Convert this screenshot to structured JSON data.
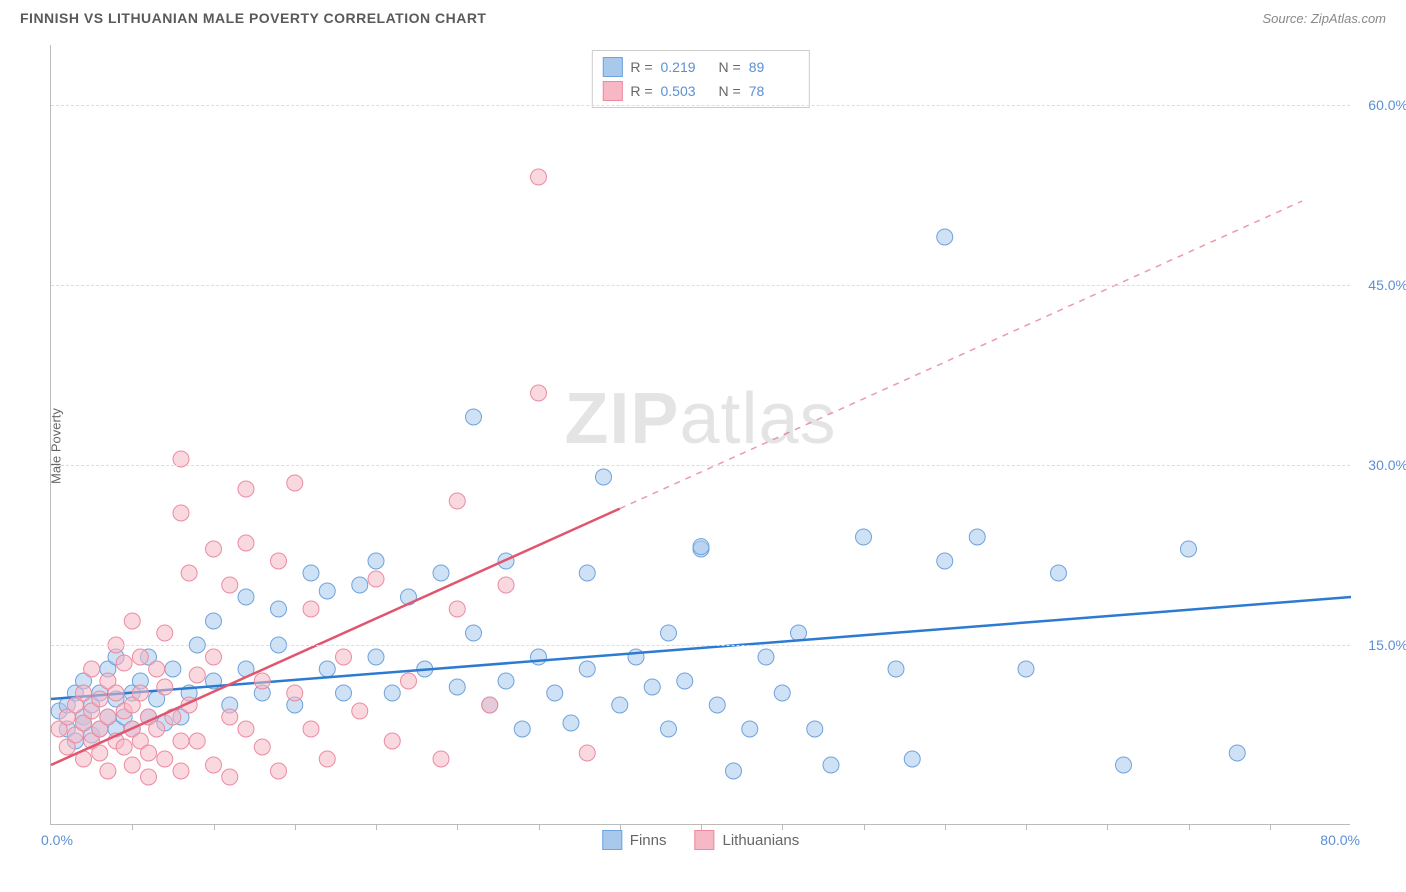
{
  "title": "FINNISH VS LITHUANIAN MALE POVERTY CORRELATION CHART",
  "source_label": "Source: ZipAtlas.com",
  "y_axis_label": "Male Poverty",
  "watermark": {
    "part1": "ZIP",
    "part2": "atlas"
  },
  "chart": {
    "type": "scatter",
    "xlim": [
      0,
      80
    ],
    "ylim": [
      0,
      65
    ],
    "x_min_label": "0.0%",
    "x_max_label": "80.0%",
    "y_ticks": [
      {
        "v": 15,
        "label": "15.0%"
      },
      {
        "v": 30,
        "label": "30.0%"
      },
      {
        "v": 45,
        "label": "45.0%"
      },
      {
        "v": 60,
        "label": "60.0%"
      }
    ],
    "x_tick_spacing": 5,
    "background_color": "#ffffff",
    "grid_color": "#dddddd",
    "grid_dash": "4,4",
    "axis_color": "#bbbbbb",
    "tick_label_color": "#5a8fd6",
    "marker_radius": 8,
    "marker_opacity": 0.55,
    "line_width": 2.5
  },
  "series": [
    {
      "name": "Finns",
      "color_fill": "#a8c8ec",
      "color_stroke": "#6fa3dd",
      "line_color": "#2d7bd1",
      "line_dash": "none",
      "R": "0.219",
      "N": "89",
      "trend": {
        "x1": 0,
        "y1": 10.5,
        "x2": 80,
        "y2": 19
      },
      "points": [
        [
          0.5,
          9.5
        ],
        [
          1,
          8
        ],
        [
          1,
          10
        ],
        [
          1.5,
          7
        ],
        [
          1.5,
          11
        ],
        [
          2,
          9
        ],
        [
          2,
          12
        ],
        [
          2,
          8.5
        ],
        [
          2.5,
          10
        ],
        [
          2.5,
          7.5
        ],
        [
          3,
          11
        ],
        [
          3,
          8
        ],
        [
          3.5,
          9
        ],
        [
          3.5,
          13
        ],
        [
          4,
          8
        ],
        [
          4,
          10.5
        ],
        [
          4,
          14
        ],
        [
          4.5,
          9
        ],
        [
          5,
          11
        ],
        [
          5,
          8
        ],
        [
          5.5,
          12
        ],
        [
          6,
          9
        ],
        [
          6,
          14
        ],
        [
          6.5,
          10.5
        ],
        [
          7,
          8.5
        ],
        [
          7.5,
          13
        ],
        [
          8,
          9
        ],
        [
          8.5,
          11
        ],
        [
          9,
          15
        ],
        [
          10,
          12
        ],
        [
          10,
          17
        ],
        [
          11,
          10
        ],
        [
          12,
          13
        ],
        [
          12,
          19
        ],
        [
          13,
          11
        ],
        [
          14,
          18
        ],
        [
          14,
          15
        ],
        [
          15,
          10
        ],
        [
          16,
          21
        ],
        [
          17,
          13
        ],
        [
          17,
          19.5
        ],
        [
          18,
          11
        ],
        [
          19,
          20
        ],
        [
          20,
          14
        ],
        [
          20,
          22
        ],
        [
          21,
          11
        ],
        [
          22,
          19
        ],
        [
          23,
          13
        ],
        [
          24,
          21
        ],
        [
          25,
          11.5
        ],
        [
          26,
          34
        ],
        [
          26,
          16
        ],
        [
          27,
          10
        ],
        [
          28,
          12
        ],
        [
          28,
          22
        ],
        [
          29,
          8
        ],
        [
          30,
          14
        ],
        [
          31,
          11
        ],
        [
          32,
          8.5
        ],
        [
          33,
          13
        ],
        [
          33,
          21
        ],
        [
          34,
          29
        ],
        [
          35,
          10
        ],
        [
          36,
          14
        ],
        [
          37,
          11.5
        ],
        [
          38,
          8
        ],
        [
          38,
          16
        ],
        [
          39,
          12
        ],
        [
          40,
          23
        ],
        [
          40,
          23.2
        ],
        [
          41,
          10
        ],
        [
          42,
          4.5
        ],
        [
          43,
          8
        ],
        [
          44,
          14
        ],
        [
          45,
          11
        ],
        [
          46,
          16
        ],
        [
          47,
          8
        ],
        [
          48,
          5
        ],
        [
          50,
          24
        ],
        [
          52,
          13
        ],
        [
          53,
          5.5
        ],
        [
          55,
          22
        ],
        [
          55,
          49
        ],
        [
          57,
          24
        ],
        [
          60,
          13
        ],
        [
          62,
          21
        ],
        [
          66,
          5
        ],
        [
          70,
          23
        ],
        [
          73,
          6
        ]
      ]
    },
    {
      "name": "Lithuanians",
      "color_fill": "#f5b8c4",
      "color_stroke": "#ec8ba0",
      "line_color": "#e0566f",
      "line_dash_after_x": 35,
      "R": "0.503",
      "N": "78",
      "trend": {
        "x1": 0,
        "y1": 5,
        "x2": 77,
        "y2": 52
      },
      "points": [
        [
          0.5,
          8
        ],
        [
          1,
          6.5
        ],
        [
          1,
          9
        ],
        [
          1.5,
          7.5
        ],
        [
          1.5,
          10
        ],
        [
          2,
          5.5
        ],
        [
          2,
          8.5
        ],
        [
          2,
          11
        ],
        [
          2.5,
          7
        ],
        [
          2.5,
          9.5
        ],
        [
          2.5,
          13
        ],
        [
          3,
          6
        ],
        [
          3,
          10.5
        ],
        [
          3,
          8
        ],
        [
          3.5,
          4.5
        ],
        [
          3.5,
          9
        ],
        [
          3.5,
          12
        ],
        [
          4,
          7
        ],
        [
          4,
          11
        ],
        [
          4,
          15
        ],
        [
          4.5,
          6.5
        ],
        [
          4.5,
          9.5
        ],
        [
          4.5,
          13.5
        ],
        [
          5,
          5
        ],
        [
          5,
          8
        ],
        [
          5,
          10
        ],
        [
          5,
          17
        ],
        [
          5.5,
          7
        ],
        [
          5.5,
          11
        ],
        [
          5.5,
          14
        ],
        [
          6,
          6
        ],
        [
          6,
          9
        ],
        [
          6,
          4
        ],
        [
          6.5,
          13
        ],
        [
          6.5,
          8
        ],
        [
          7,
          5.5
        ],
        [
          7,
          11.5
        ],
        [
          7,
          16
        ],
        [
          7.5,
          9
        ],
        [
          8,
          7
        ],
        [
          8,
          4.5
        ],
        [
          8,
          26
        ],
        [
          8,
          30.5
        ],
        [
          8.5,
          10
        ],
        [
          8.5,
          21
        ],
        [
          9,
          12.5
        ],
        [
          9,
          7
        ],
        [
          10,
          5
        ],
        [
          10,
          14
        ],
        [
          10,
          23
        ],
        [
          11,
          4
        ],
        [
          11,
          9
        ],
        [
          11,
          20
        ],
        [
          12,
          23.5
        ],
        [
          12,
          8
        ],
        [
          12,
          28
        ],
        [
          13,
          12
        ],
        [
          13,
          6.5
        ],
        [
          14,
          22
        ],
        [
          14,
          4.5
        ],
        [
          15,
          11
        ],
        [
          15,
          28.5
        ],
        [
          16,
          8
        ],
        [
          16,
          18
        ],
        [
          17,
          5.5
        ],
        [
          18,
          14
        ],
        [
          19,
          9.5
        ],
        [
          20,
          20.5
        ],
        [
          21,
          7
        ],
        [
          22,
          12
        ],
        [
          24,
          5.5
        ],
        [
          25,
          27
        ],
        [
          25,
          18
        ],
        [
          27,
          10
        ],
        [
          28,
          20
        ],
        [
          30,
          54
        ],
        [
          30,
          36
        ],
        [
          33,
          6
        ]
      ]
    }
  ],
  "legend_labels": {
    "r_label": "R =",
    "n_label": "N ="
  }
}
